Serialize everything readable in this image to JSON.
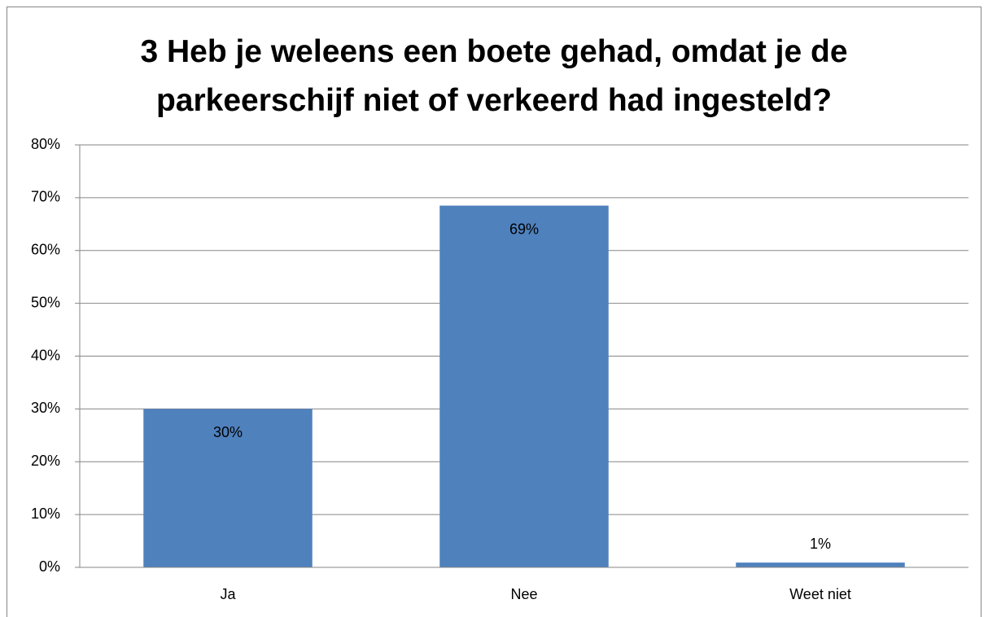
{
  "chart_data": {
    "type": "bar",
    "title": "3 Heb je weleens een boete gehad, omdat je de parkeerschijf niet of verkeerd had ingesteld?",
    "categories": [
      "Ja",
      "Nee",
      "Weet niet"
    ],
    "values": [
      30,
      68.5,
      0.9
    ],
    "value_labels": [
      "30%",
      "69%",
      "1%"
    ],
    "color": "#4f81bd",
    "ylim": [
      0,
      80
    ],
    "yticks": [
      {
        "value": 0,
        "label": "0%"
      },
      {
        "value": 10,
        "label": "10%"
      },
      {
        "value": 20,
        "label": "20%"
      },
      {
        "value": 30,
        "label": "30%"
      },
      {
        "value": 40,
        "label": "40%"
      },
      {
        "value": 50,
        "label": "50%"
      },
      {
        "value": 60,
        "label": "60%"
      },
      {
        "value": 70,
        "label": "70%"
      },
      {
        "value": 80,
        "label": "80%"
      }
    ],
    "grid": true
  }
}
